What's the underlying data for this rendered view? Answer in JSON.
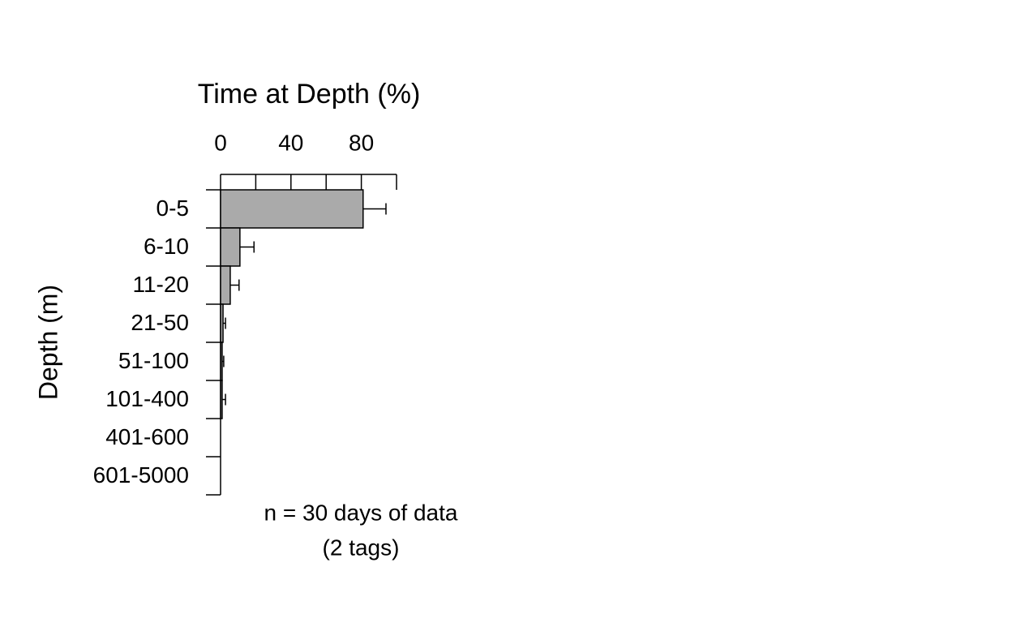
{
  "chart_data": {
    "type": "bar",
    "orientation": "horizontal",
    "title": "Time at Depth (%)",
    "y_label": "Depth (m)",
    "categories": [
      "0-5",
      "6-10",
      "11-20",
      "21-50",
      "51-100",
      "101-400",
      "401-600",
      "601-5000"
    ],
    "values": [
      81,
      11,
      5.5,
      1.4,
      0.9,
      0.9,
      0,
      0
    ],
    "errors": [
      13,
      8,
      5,
      1.4,
      0.9,
      1.9,
      0,
      0
    ],
    "color": "#aaaaaa",
    "xlim": [
      0,
      100
    ],
    "xticks": [
      0,
      40,
      80
    ],
    "minor_xticks": [
      20,
      60,
      100
    ],
    "annotations": [
      "n = 30 days of data",
      "(2 tags)"
    ]
  }
}
